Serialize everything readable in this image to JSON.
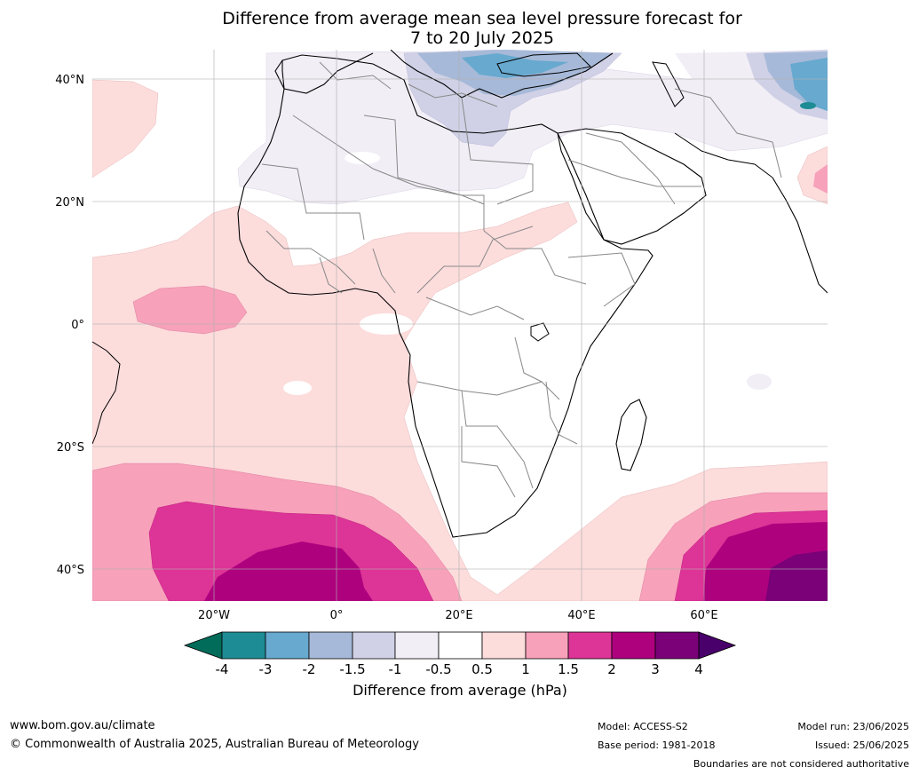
{
  "title": {
    "line1": "Difference from average mean sea level pressure forecast for",
    "line2": "7 to 20 July 2025"
  },
  "axes": {
    "lat_labels": [
      "40°N",
      "20°N",
      "0°",
      "20°S",
      "40°S"
    ],
    "lon_labels": [
      "20°W",
      "0°",
      "20°E",
      "40°E",
      "60°E"
    ]
  },
  "colorbar": {
    "ticks": [
      "-4",
      "-3",
      "-2",
      "-1.5",
      "-1",
      "-0.5",
      "0.5",
      "1",
      "1.5",
      "2",
      "3",
      "4"
    ],
    "colors": [
      "#1e8c94",
      "#67a9cf",
      "#a6b9d8",
      "#d0d1e6",
      "#f2eef6",
      "#ffffff",
      "#fddcdc",
      "#f7a1ba",
      "#dd3497",
      "#ae017e",
      "#7a0177"
    ],
    "low_extend_color": "#016c59",
    "high_extend_color": "#49006a",
    "label": "Difference from average (hPa)"
  },
  "footer": {
    "url": "www.bom.gov.au/climate",
    "copyright": "© Commonwealth of Australia 2025, Australian Bureau of Meteorology",
    "model": "Model: ACCESS-S2",
    "base_period": "Base period: 1981-2018",
    "model_run": "Model run: 23/06/2025",
    "issued": "Issued: 25/06/2025",
    "disclaimer": "Boundaries are not considered authoritative"
  }
}
